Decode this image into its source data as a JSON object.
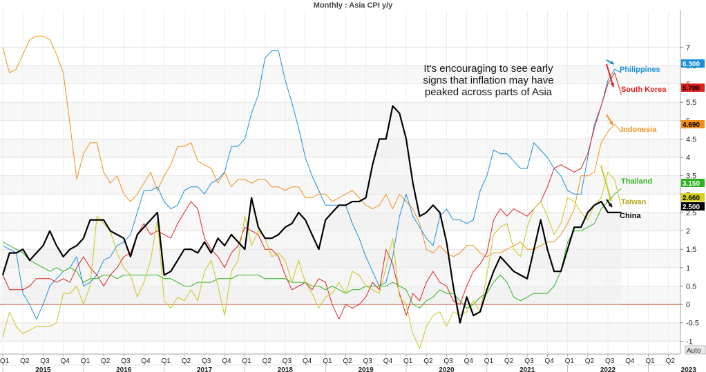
{
  "chart_data": {
    "type": "line",
    "title": "Monthly : Asia CPI y/y",
    "annotation": [
      "It's encouraging to see early",
      "signs that inflation may have",
      "peaked across parts of Asia"
    ],
    "ylim": [
      -1.35,
      8.0
    ],
    "y_ticks": [
      -1,
      -0.5,
      0,
      0.5,
      1,
      1.5,
      2,
      2.5,
      3,
      3.5,
      4,
      4.5,
      5,
      5.5,
      6,
      6.5,
      7
    ],
    "y_tick_labels": [
      "-1",
      "-0.5",
      "0",
      "0.5",
      "1",
      "1.5",
      "2",
      "2.5",
      "3",
      "3.5",
      "4",
      "4.5",
      "5",
      "5.5",
      "6",
      "6.5",
      "7"
    ],
    "quarters": [
      "Q1",
      "Q2",
      "Q3",
      "Q4",
      "Q1",
      "Q2",
      "Q3",
      "Q4",
      "Q1",
      "Q2",
      "Q3",
      "Q4",
      "Q1",
      "Q2",
      "Q3",
      "Q4",
      "Q1",
      "Q2",
      "Q3",
      "Q4",
      "Q1",
      "Q2",
      "Q3",
      "Q4",
      "Q1",
      "Q2",
      "Q3",
      "Q4",
      "Q1",
      "Q2",
      "Q3",
      "Q4",
      "Q1",
      "Q2"
    ],
    "years": [
      "2015",
      "2016",
      "2017",
      "2018",
      "2019",
      "2020",
      "2021",
      "2022",
      "2023"
    ],
    "zero_line_color": "#cc4422",
    "auto_label": "Auto",
    "series": [
      {
        "name": "Philippines",
        "color": "#1a8fd6",
        "last": "6.300",
        "label_color": "#1a8fd6",
        "values": [
          1.6,
          1.5,
          1.4,
          0.3,
          0.0,
          -0.4,
          0.0,
          0.5,
          0.7,
          0.9,
          1.0,
          1.3,
          0.5,
          0.6,
          0.8,
          1.2,
          1.3,
          1.6,
          1.7,
          1.9,
          2.5,
          3.1,
          3.1,
          3.2,
          2.8,
          2.6,
          2.7,
          3.1,
          3.2,
          3.2,
          3.0,
          3.3,
          3.4,
          3.6,
          4.3,
          4.3,
          4.5,
          5.2,
          5.7,
          6.7,
          6.9,
          6.9,
          6.1,
          5.5,
          4.8,
          4.0,
          3.5,
          3.1,
          2.7,
          2.7,
          2.7,
          2.7,
          2.2,
          1.8,
          1.3,
          0.9,
          0.5,
          0.6,
          1.3,
          2.4,
          3.0,
          2.4,
          2.1,
          1.8,
          1.6,
          2.4,
          2.6,
          2.3,
          2.3,
          2.2,
          2.3,
          3.1,
          3.5,
          4.2,
          4.1,
          4.1,
          3.9,
          3.7,
          3.7,
          4.4,
          4.2,
          4.0,
          3.7,
          3.5,
          3.1,
          3.0,
          3.0,
          4.0,
          4.9,
          5.4,
          6.1,
          6.4,
          6.3
        ]
      },
      {
        "name": "South Korea",
        "color": "#e02020",
        "last": "5.700",
        "label_color": "#e02020",
        "values": [
          0.8,
          0.4,
          0.4,
          0.4,
          0.5,
          0.7,
          0.7,
          0.7,
          0.6,
          0.7,
          0.6,
          1.0,
          1.3,
          1.0,
          0.8,
          0.5,
          0.8,
          1.0,
          1.3,
          1.4,
          1.9,
          2.2,
          1.9,
          2.0,
          1.9,
          1.8,
          2.2,
          2.5,
          2.8,
          2.6,
          1.8,
          1.5,
          1.3,
          1.0,
          1.4,
          1.6,
          2.1,
          2.0,
          1.9,
          1.5,
          1.5,
          1.3,
          0.8,
          0.4,
          0.5,
          0.6,
          0.4,
          0.7,
          0.6,
          0.0,
          -0.4,
          0.0,
          -0.1,
          0.0,
          0.2,
          0.6,
          0.4,
          1.5,
          1.1,
          0.3,
          -0.3,
          0.3,
          0.1,
          0.6,
          0.9,
          0.6,
          0.5,
          0.1,
          0.0,
          0.5,
          0.9,
          1.1,
          1.4,
          2.3,
          2.6,
          2.4,
          2.6,
          2.5,
          2.4,
          2.6,
          2.8,
          3.2,
          3.7,
          3.8,
          3.7,
          3.6,
          3.7,
          4.1,
          4.8,
          5.4,
          6.0,
          6.3,
          5.7
        ]
      },
      {
        "name": "Indonesia",
        "color": "#f0901a",
        "last": "4.690",
        "label_color": "#f0901a",
        "values": [
          7.0,
          6.3,
          6.4,
          6.8,
          7.2,
          7.3,
          7.3,
          7.2,
          6.8,
          6.3,
          4.9,
          3.4,
          4.1,
          4.4,
          4.4,
          3.6,
          3.3,
          3.5,
          3.0,
          2.8,
          3.0,
          3.3,
          3.6,
          3.1,
          3.5,
          3.8,
          4.3,
          4.3,
          4.4,
          3.9,
          3.8,
          3.7,
          3.3,
          3.6,
          3.2,
          3.4,
          3.4,
          3.3,
          3.4,
          3.4,
          3.2,
          3.2,
          3.1,
          3.2,
          3.2,
          2.9,
          2.9,
          3.0,
          3.0,
          2.8,
          2.9,
          3.0,
          3.1,
          2.9,
          2.7,
          2.6,
          2.7,
          3.0,
          2.6,
          3.0,
          2.8,
          2.6,
          2.2,
          1.5,
          1.4,
          1.6,
          1.4,
          1.3,
          1.4,
          1.6,
          1.6,
          1.4,
          1.3,
          1.4,
          1.4,
          1.5,
          1.6,
          1.7,
          1.5,
          1.5,
          1.6,
          1.7,
          1.7,
          1.9,
          2.2,
          2.6,
          3.5,
          3.5,
          3.6,
          4.4,
          4.7,
          4.9,
          4.69
        ]
      },
      {
        "name": "Thailand",
        "color": "#2fb322",
        "last": "3.150",
        "label_color": "#2fb322",
        "values": [
          1.7,
          1.6,
          1.5,
          1.4,
          1.2,
          1.1,
          1.0,
          0.9,
          1.0,
          0.9,
          1.0,
          0.9,
          0.6,
          0.7,
          0.7,
          0.8,
          0.8,
          0.7,
          0.8,
          0.8,
          0.8,
          0.8,
          0.8,
          0.8,
          0.7,
          0.7,
          0.6,
          0.5,
          0.5,
          0.6,
          0.6,
          0.6,
          0.7,
          0.7,
          0.7,
          0.8,
          0.8,
          0.8,
          0.8,
          0.7,
          0.7,
          0.7,
          0.7,
          0.6,
          0.6,
          0.6,
          0.5,
          0.5,
          0.4,
          0.5,
          0.4,
          0.3,
          0.4,
          0.4,
          0.5,
          0.5,
          0.5,
          0.5,
          0.6,
          0.5,
          0.4,
          0.0,
          -0.1,
          0.1,
          0.2,
          0.4,
          0.3,
          0.3,
          0.1,
          -0.1,
          0.0,
          0.2,
          0.3,
          0.6,
          0.8,
          0.6,
          0.2,
          0.1,
          0.2,
          0.3,
          0.3,
          0.3,
          0.5,
          0.9,
          1.7,
          2.0,
          2.0,
          2.1,
          2.2,
          2.6,
          2.8,
          3.0,
          3.15
        ]
      },
      {
        "name": "Taiwan",
        "color": "#c9c61a",
        "last": "2.660",
        "label_color": "#b8a81a",
        "values": [
          -0.9,
          -0.2,
          -0.6,
          -0.8,
          -0.7,
          -0.6,
          -0.6,
          -0.6,
          -0.5,
          0.3,
          0.3,
          0.5,
          0.0,
          0.5,
          2.4,
          2.2,
          2.0,
          1.4,
          1.0,
          0.8,
          0.2,
          0.6,
          1.2,
          2.3,
          0.1,
          -0.1,
          0.2,
          0.1,
          0.4,
          0.1,
          0.9,
          1.2,
          0.5,
          -0.3,
          0.9,
          1.2,
          2.4,
          1.6,
          2.0,
          1.8,
          1.3,
          1.4,
          1.2,
          0.6,
          1.2,
          0.6,
          0.3,
          -0.1,
          0.2,
          0.3,
          0.6,
          0.3,
          0.9,
          0.8,
          0.5,
          0.4,
          0.3,
          1.0,
          1.8,
          0.2,
          0.0,
          -0.8,
          -1.2,
          -0.6,
          -0.3,
          -0.2,
          -0.6,
          -0.2,
          -0.3,
          -0.2,
          0.1,
          -0.2,
          0.8,
          1.9,
          2.1,
          2.2,
          1.5,
          1.3,
          2.1,
          2.6,
          2.8,
          2.4,
          1.9,
          2.2,
          2.9,
          2.8,
          2.5,
          2.3,
          2.7,
          2.9,
          3.6,
          3.4,
          2.66
        ]
      },
      {
        "name": "China",
        "color": "#000000",
        "last": "2.500",
        "label_color": "#000000",
        "values": [
          0.8,
          1.4,
          1.4,
          1.5,
          1.2,
          1.4,
          1.6,
          2.0,
          1.6,
          1.3,
          1.5,
          1.6,
          1.8,
          2.3,
          2.3,
          2.3,
          2.0,
          1.9,
          1.8,
          1.3,
          1.9,
          2.1,
          2.3,
          2.5,
          0.8,
          0.9,
          1.2,
          1.5,
          1.5,
          1.4,
          1.7,
          1.4,
          1.8,
          1.6,
          1.9,
          1.7,
          1.5,
          2.9,
          2.1,
          1.8,
          1.8,
          1.9,
          2.1,
          2.2,
          2.5,
          2.3,
          1.9,
          1.5,
          2.3,
          2.5,
          2.7,
          2.7,
          2.8,
          2.8,
          2.9,
          3.8,
          4.5,
          4.5,
          5.4,
          5.2,
          4.5,
          3.3,
          2.4,
          2.5,
          2.7,
          2.5,
          1.7,
          0.5,
          -0.5,
          0.2,
          -0.3,
          -0.2,
          0.4,
          0.9,
          1.3,
          1.1,
          0.9,
          0.8,
          0.7,
          1.5,
          2.3,
          1.5,
          0.9,
          0.9,
          1.5,
          2.1,
          2.1,
          2.5,
          2.7,
          2.8,
          2.5,
          2.5,
          2.5
        ]
      }
    ]
  }
}
